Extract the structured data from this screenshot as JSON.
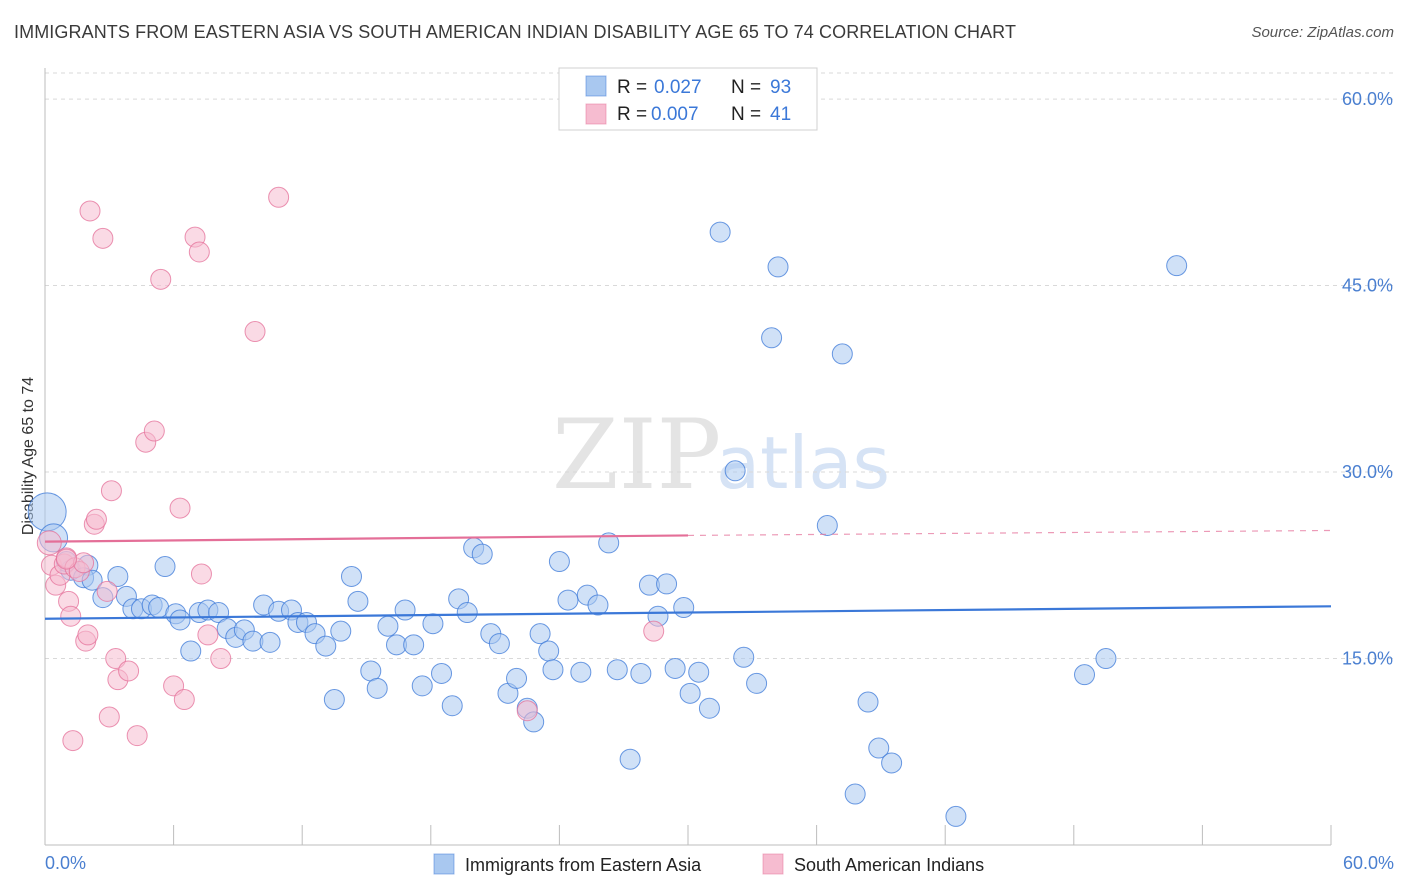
{
  "title": "IMMIGRANTS FROM EASTERN ASIA VS SOUTH AMERICAN INDIAN DISABILITY AGE 65 TO 74 CORRELATION CHART",
  "source": "Source: ZipAtlas.com",
  "watermark": {
    "zip": "ZIP",
    "atlas": "atlas"
  },
  "colors": {
    "blue": "#3b78d8",
    "blue_fill": "#a9c8f0",
    "pink": "#e46f98",
    "pink_fill": "#f6bcd0",
    "grid": "#d9d9d9",
    "axis_text": "#4a7fd0"
  },
  "legend": {
    "r_label": "R =",
    "n_label": "N =",
    "rows": [
      {
        "r": "0.027",
        "n": "93"
      },
      {
        "r": "0.007",
        "n": "41"
      }
    ]
  },
  "chart_data": {
    "type": "scatter",
    "title": "IMMIGRANTS FROM EASTERN ASIA VS SOUTH AMERICAN INDIAN DISABILITY AGE 65 TO 74 CORRELATION CHART",
    "xlabel": "",
    "ylabel": "Disability Age 65 to 74",
    "xlim": [
      0,
      60
    ],
    "ylim": [
      0,
      62.5
    ],
    "x_tick_labels": [
      "0.0%",
      "60.0%"
    ],
    "y_ticks": [
      15,
      30,
      45,
      60
    ],
    "y_tick_labels": [
      "15.0%",
      "30.0%",
      "45.0%",
      "60.0%"
    ],
    "grid": true,
    "legend_position": "bottom-center",
    "series": [
      {
        "name": "Immigrants from Eastern Asia",
        "color": "#3b78d8",
        "trend": {
          "x": [
            0,
            60
          ],
          "y": [
            18.2,
            19.2
          ]
        },
        "points": [
          [
            0.1,
            26.8
          ],
          [
            0.4,
            24.7
          ],
          [
            1.2,
            22.1
          ],
          [
            2.0,
            22.5
          ],
          [
            1.8,
            21.5
          ],
          [
            2.2,
            21.3
          ],
          [
            3.4,
            21.6
          ],
          [
            3.8,
            20.0
          ],
          [
            2.7,
            19.9
          ],
          [
            4.1,
            19.0
          ],
          [
            4.5,
            19.0
          ],
          [
            5.0,
            19.3
          ],
          [
            5.3,
            19.1
          ],
          [
            5.6,
            22.4
          ],
          [
            6.1,
            18.6
          ],
          [
            6.3,
            18.1
          ],
          [
            6.8,
            15.6
          ],
          [
            7.2,
            18.7
          ],
          [
            7.6,
            18.9
          ],
          [
            8.1,
            18.7
          ],
          [
            8.5,
            17.4
          ],
          [
            8.9,
            16.7
          ],
          [
            9.3,
            17.3
          ],
          [
            9.7,
            16.4
          ],
          [
            10.2,
            19.3
          ],
          [
            10.5,
            16.3
          ],
          [
            10.9,
            18.8
          ],
          [
            11.5,
            18.9
          ],
          [
            11.8,
            17.9
          ],
          [
            12.2,
            17.9
          ],
          [
            12.6,
            17.0
          ],
          [
            13.1,
            16.0
          ],
          [
            13.5,
            11.7
          ],
          [
            13.8,
            17.2
          ],
          [
            14.3,
            21.6
          ],
          [
            14.6,
            19.6
          ],
          [
            15.2,
            14.0
          ],
          [
            15.5,
            12.6
          ],
          [
            16.0,
            17.6
          ],
          [
            16.4,
            16.1
          ],
          [
            16.8,
            18.9
          ],
          [
            17.2,
            16.1
          ],
          [
            17.6,
            12.8
          ],
          [
            18.1,
            17.8
          ],
          [
            18.5,
            13.8
          ],
          [
            19.0,
            11.2
          ],
          [
            19.3,
            19.8
          ],
          [
            19.7,
            18.7
          ],
          [
            20.0,
            23.9
          ],
          [
            20.4,
            23.4
          ],
          [
            20.8,
            17.0
          ],
          [
            21.2,
            16.2
          ],
          [
            21.6,
            12.2
          ],
          [
            22.0,
            13.4
          ],
          [
            22.5,
            11.0
          ],
          [
            22.8,
            9.9
          ],
          [
            23.1,
            17.0
          ],
          [
            23.5,
            15.6
          ],
          [
            23.7,
            14.1
          ],
          [
            24.0,
            22.8
          ],
          [
            24.4,
            19.7
          ],
          [
            25.0,
            13.9
          ],
          [
            25.3,
            20.1
          ],
          [
            25.8,
            19.3
          ],
          [
            26.3,
            24.3
          ],
          [
            26.7,
            14.1
          ],
          [
            27.3,
            6.9
          ],
          [
            27.8,
            13.8
          ],
          [
            28.2,
            20.9
          ],
          [
            28.6,
            18.4
          ],
          [
            29.0,
            21.0
          ],
          [
            29.4,
            14.2
          ],
          [
            29.8,
            19.1
          ],
          [
            30.1,
            12.2
          ],
          [
            30.5,
            13.9
          ],
          [
            31.0,
            11.0
          ],
          [
            31.5,
            49.3
          ],
          [
            32.2,
            30.1
          ],
          [
            32.6,
            15.1
          ],
          [
            33.2,
            13.0
          ],
          [
            33.9,
            40.8
          ],
          [
            34.2,
            46.5
          ],
          [
            36.5,
            25.7
          ],
          [
            37.2,
            39.5
          ],
          [
            37.8,
            4.1
          ],
          [
            38.4,
            11.5
          ],
          [
            38.9,
            7.8
          ],
          [
            39.5,
            6.6
          ],
          [
            42.5,
            2.3
          ],
          [
            48.5,
            13.7
          ],
          [
            49.5,
            15.0
          ],
          [
            52.8,
            46.6
          ],
          [
            1.0,
            22.8
          ]
        ]
      },
      {
        "name": "South American Indians",
        "color": "#e46f98",
        "trend": {
          "x": [
            0,
            30
          ],
          "y": [
            24.4,
            24.9
          ],
          "dashed_to": {
            "x": 60,
            "y": 25.3
          }
        },
        "points": [
          [
            0.2,
            24.3
          ],
          [
            0.3,
            22.5
          ],
          [
            0.5,
            20.9
          ],
          [
            0.7,
            21.7
          ],
          [
            0.9,
            22.6
          ],
          [
            1.0,
            23.1
          ],
          [
            1.1,
            19.6
          ],
          [
            1.2,
            18.4
          ],
          [
            1.3,
            8.4
          ],
          [
            1.4,
            22.3
          ],
          [
            1.6,
            22.0
          ],
          [
            1.8,
            22.7
          ],
          [
            1.9,
            16.4
          ],
          [
            2.0,
            16.9
          ],
          [
            2.1,
            51.0
          ],
          [
            2.3,
            25.8
          ],
          [
            2.4,
            26.2
          ],
          [
            2.7,
            48.8
          ],
          [
            2.9,
            20.4
          ],
          [
            3.0,
            10.3
          ],
          [
            3.1,
            28.5
          ],
          [
            3.3,
            15.0
          ],
          [
            3.4,
            13.3
          ],
          [
            3.9,
            14.0
          ],
          [
            4.3,
            8.8
          ],
          [
            4.7,
            32.4
          ],
          [
            5.1,
            33.3
          ],
          [
            5.4,
            45.5
          ],
          [
            6.0,
            12.8
          ],
          [
            6.3,
            27.1
          ],
          [
            6.5,
            11.7
          ],
          [
            7.0,
            48.9
          ],
          [
            7.2,
            47.7
          ],
          [
            7.3,
            21.8
          ],
          [
            7.6,
            16.9
          ],
          [
            8.2,
            15.0
          ],
          [
            9.8,
            41.3
          ],
          [
            10.9,
            52.1
          ],
          [
            22.5,
            10.8
          ],
          [
            28.4,
            17.2
          ],
          [
            1.0,
            23.0
          ]
        ]
      }
    ]
  }
}
